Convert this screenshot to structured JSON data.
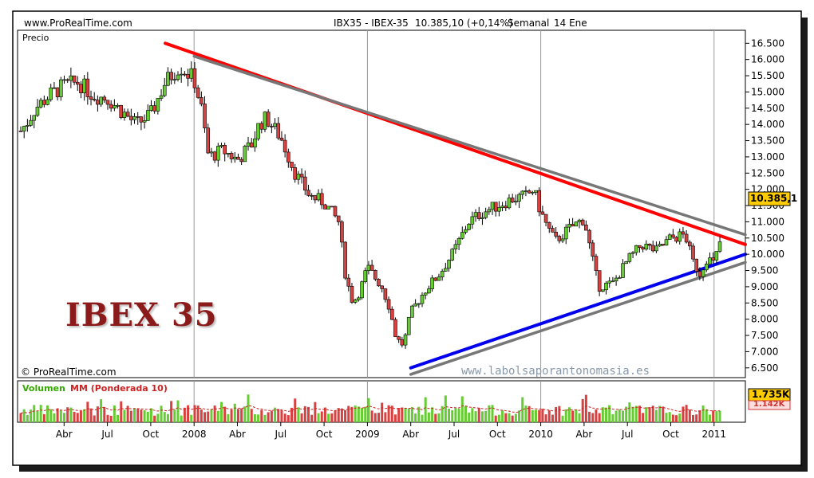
{
  "header": {
    "site": "www.ProRealTime.com",
    "instrument": "IBX35 - IBEX-35",
    "quote": "10.385,10 (+0,14%)",
    "period": "Semanal",
    "date": "14 Ene"
  },
  "panel_price": {
    "label": "Precio",
    "last_value": "10.385,1",
    "watermark_title": "IBEX 35",
    "copyright": "© ProRealTime.com",
    "website": "www.labolsaporantonomasia.es"
  },
  "panel_volume": {
    "label_volumen": "Volumen",
    "label_mm": "MM (Ponderada 10)",
    "value_volume": "1.735K",
    "value_mm": "1.142K"
  },
  "colors": {
    "up": "#66cc33",
    "down": "#d94040",
    "resistance": "#ff0000",
    "support": "#0000ee",
    "channel": "#777777",
    "last_value_bg": "#ffcc00",
    "volume_box_bg": "#ffcc00"
  },
  "chart_data": [
    {
      "type": "line",
      "ylim": [
        6200,
        16900
      ],
      "y_ticks": [
        6500,
        7000,
        7500,
        8000,
        8500,
        9000,
        9500,
        10000,
        10500,
        11000,
        11500,
        12000,
        12500,
        13000,
        13500,
        14000,
        14500,
        15000,
        15500,
        16000,
        16500
      ],
      "y_tick_labels": [
        "6.500",
        "7.000",
        "7.500",
        "8.000",
        "8.500",
        "9.000",
        "9.500",
        "10.000",
        "10.500",
        "11.000",
        "11.500",
        "12.000",
        "12.500",
        "13.000",
        "13.500",
        "14.000",
        "14.500",
        "15.000",
        "15.500",
        "16.000",
        "16.500"
      ],
      "x_tick_labels": [
        "Abr",
        "Jul",
        "Oct",
        "2008",
        "Abr",
        "Jul",
        "Oct",
        "2009",
        "Abr",
        "Jul",
        "Oct",
        "2010",
        "Abr",
        "Jul",
        "Oct",
        "2011"
      ],
      "x_tick_months": [
        3,
        6,
        9,
        12,
        15,
        18,
        21,
        24,
        27,
        30,
        33,
        36,
        39,
        42,
        45,
        48
      ],
      "price_path": [
        [
          0,
          13800
        ],
        [
          0.5,
          14100
        ],
        [
          1,
          14500
        ],
        [
          2,
          14900
        ],
        [
          3,
          15200
        ],
        [
          4,
          15300
        ],
        [
          5,
          14900
        ],
        [
          6,
          14800
        ],
        [
          7,
          14400
        ],
        [
          8,
          14000
        ],
        [
          9,
          14300
        ],
        [
          10,
          15300
        ],
        [
          11,
          15800
        ],
        [
          11.5,
          15600
        ],
        [
          12,
          15400
        ],
        [
          12.5,
          14500
        ],
        [
          13,
          13000
        ],
        [
          14,
          13200
        ],
        [
          15,
          12900
        ],
        [
          16,
          13400
        ],
        [
          16.5,
          14000
        ],
        [
          17,
          14200
        ],
        [
          18,
          13600
        ],
        [
          19,
          12500
        ],
        [
          20,
          11800
        ],
        [
          21,
          11600
        ],
        [
          22,
          11000
        ],
        [
          22.5,
          9300
        ],
        [
          23,
          8500
        ],
        [
          23.5,
          8900
        ],
        [
          24,
          9600
        ],
        [
          25,
          9000
        ],
        [
          25.5,
          8400
        ],
        [
          26,
          7400
        ],
        [
          26.5,
          7200
        ],
        [
          27,
          8200
        ],
        [
          28,
          8900
        ],
        [
          29,
          9400
        ],
        [
          30,
          10100
        ],
        [
          31,
          11000
        ],
        [
          32,
          11300
        ],
        [
          33,
          11500
        ],
        [
          34,
          11700
        ],
        [
          35,
          11800
        ],
        [
          35.5,
          12000
        ],
        [
          36,
          11300
        ],
        [
          36.5,
          10800
        ],
        [
          37,
          10400
        ],
        [
          38,
          10800
        ],
        [
          39,
          11100
        ],
        [
          39.5,
          10000
        ],
        [
          40,
          9000
        ],
        [
          41,
          9100
        ],
        [
          42,
          9800
        ],
        [
          43,
          10300
        ],
        [
          44,
          10100
        ],
        [
          45,
          10500
        ],
        [
          46,
          10600
        ],
        [
          46.5,
          9800
        ],
        [
          47,
          9400
        ],
        [
          47.5,
          9900
        ],
        [
          48,
          9700
        ],
        [
          48.4,
          10385
        ]
      ],
      "trendlines": [
        {
          "color": "resistance",
          "from": [
            10,
            16500
          ],
          "to": [
            51,
            10300
          ]
        },
        {
          "color": "channel",
          "from": [
            12,
            16100
          ],
          "to": [
            51,
            10600
          ]
        },
        {
          "color": "support",
          "from": [
            27,
            6500
          ],
          "to": [
            51,
            10000
          ]
        },
        {
          "color": "channel",
          "from": [
            27,
            6300
          ],
          "to": [
            51,
            9750
          ]
        }
      ]
    },
    {
      "type": "bar",
      "series": "volume_weekly",
      "x_range_months": [
        0,
        48.5
      ],
      "moving_average": "MM (Ponderada 10)"
    }
  ]
}
